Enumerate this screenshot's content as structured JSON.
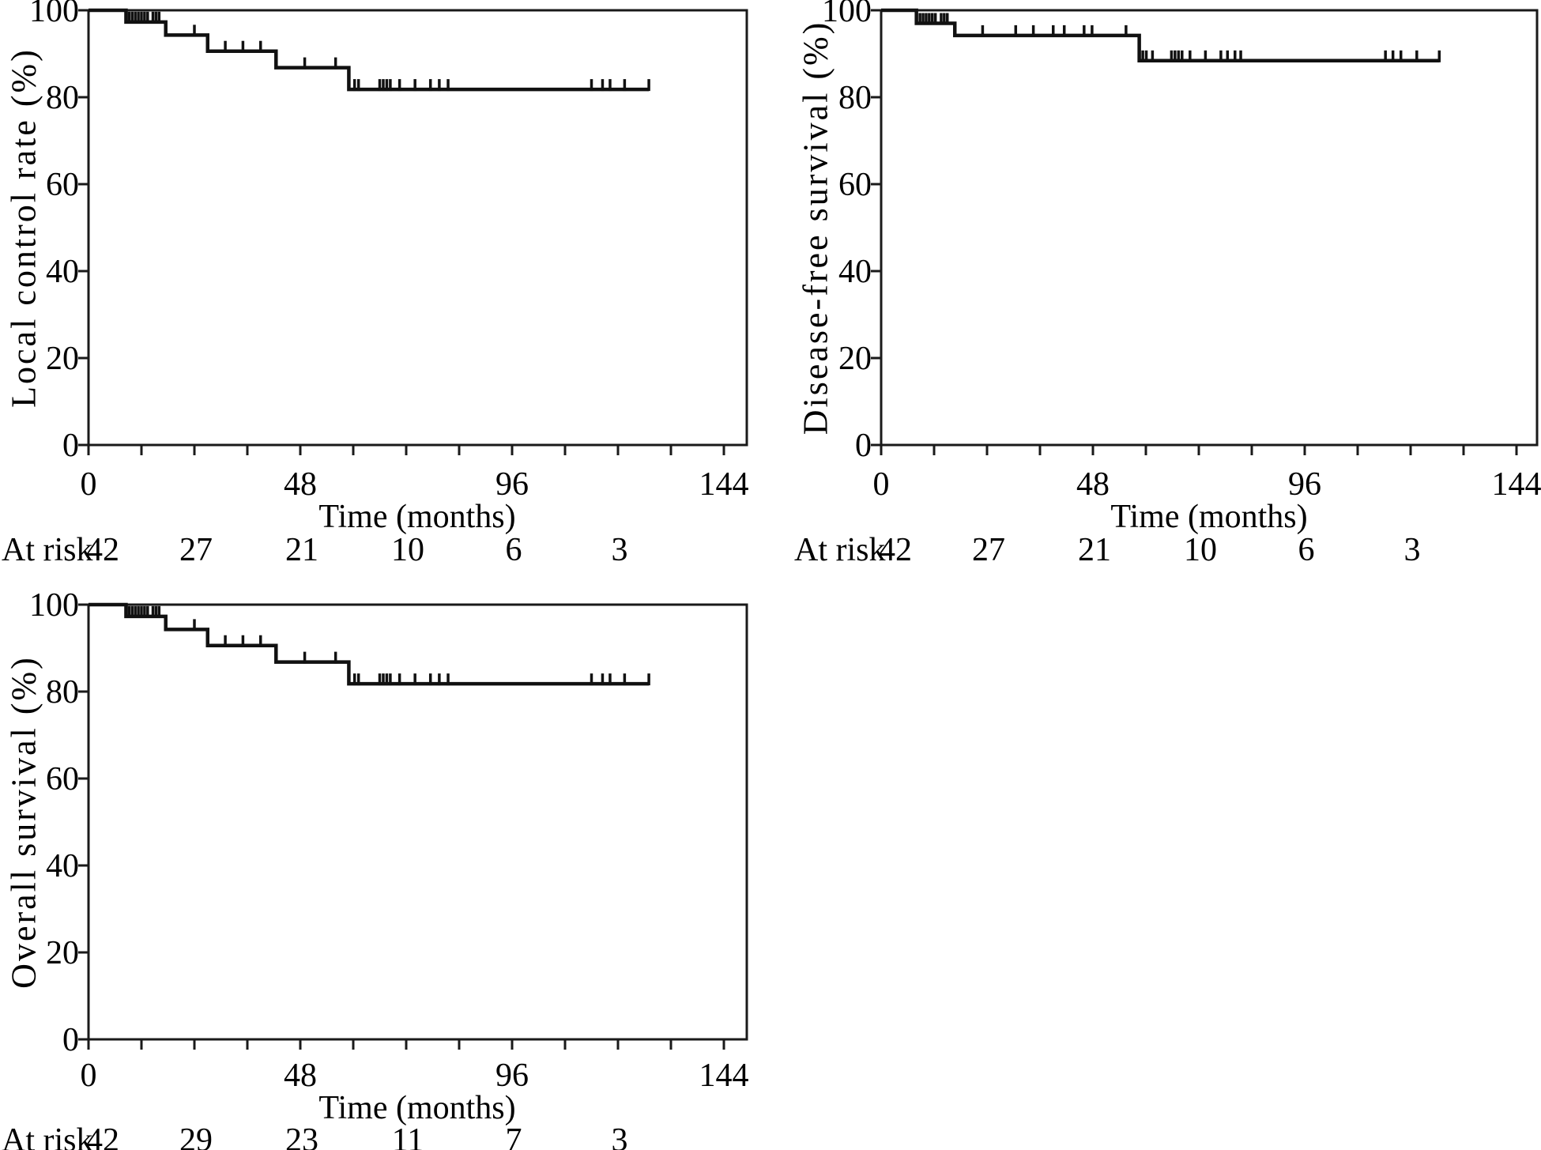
{
  "figure": {
    "description": "Three-panel Kaplan-Meier survival figure",
    "background_color": "#ffffff",
    "curve_color": "#111111",
    "axis_color": "#1a1a1a",
    "text_color": "#000000"
  },
  "chart_data": [
    {
      "id": "local-control",
      "type": "line",
      "style": "kaplan-meier-step",
      "title": "",
      "ylabel": "Local control rate (%)",
      "xlabel": "Time (months)",
      "xlim": [
        0,
        149
      ],
      "ylim": [
        0,
        100
      ],
      "grid": false,
      "legend": null,
      "y_ticks": [
        0,
        20,
        40,
        60,
        80,
        100
      ],
      "x_major_ticks": [
        0,
        48,
        96,
        144
      ],
      "x_minor_tick_step": 12,
      "start_level": 100,
      "steps": [
        [
          8.5,
          97.3
        ],
        [
          17.5,
          94.3
        ],
        [
          27,
          90.6
        ],
        [
          42.5,
          86.8
        ],
        [
          59,
          81.8
        ]
      ],
      "curve_end": 127,
      "censor_times": [
        9.2,
        9.9,
        10.6,
        11.3,
        12,
        12.7,
        13.4,
        14.6,
        15.3,
        16,
        24,
        31,
        35,
        39,
        49,
        56,
        60.3,
        61.2,
        66,
        66.8,
        67.6,
        68.4,
        70.5,
        74,
        77.5,
        79.5,
        81.5,
        114,
        116.5,
        118.2,
        121.5,
        127
      ],
      "at_risk": {
        "label": "At risk",
        "times": [
          0,
          24,
          48,
          72,
          96,
          120
        ],
        "values": [
          42,
          27,
          21,
          10,
          6,
          3
        ]
      }
    },
    {
      "id": "disease-free-survival",
      "type": "line",
      "style": "kaplan-meier-step",
      "title": "",
      "ylabel": "Disease-free survival (%)",
      "xlabel": "Time (months)",
      "xlim": [
        0,
        149
      ],
      "ylim": [
        0,
        100
      ],
      "grid": false,
      "legend": null,
      "y_ticks": [
        0,
        20,
        40,
        60,
        80,
        100
      ],
      "x_major_ticks": [
        0,
        48,
        96,
        144
      ],
      "x_minor_tick_step": 12,
      "start_level": 100,
      "steps": [
        [
          8,
          97.0
        ],
        [
          16.7,
          94.2
        ],
        [
          58.5,
          88.4
        ]
      ],
      "curve_end": 126.5,
      "censor_times": [
        8.8,
        9.5,
        10.2,
        10.9,
        11.6,
        12.3,
        13.6,
        14.3,
        15,
        23,
        30.5,
        34.5,
        39,
        41.5,
        46,
        47.8,
        55.5,
        59.3,
        60.1,
        61.5,
        65.8,
        66.6,
        67.4,
        68.2,
        70,
        73.5,
        77,
        78.5,
        80.2,
        81.5,
        114.3,
        116,
        117.8,
        121.4,
        126.5
      ],
      "at_risk": {
        "label": "At risk",
        "times": [
          0,
          24,
          48,
          72,
          96,
          120
        ],
        "values": [
          42,
          27,
          21,
          10,
          6,
          3
        ]
      }
    },
    {
      "id": "overall-survival",
      "type": "line",
      "style": "kaplan-meier-step",
      "title": "",
      "ylabel": "Overall survival (%)",
      "xlabel": "Time (months)",
      "xlim": [
        0,
        149
      ],
      "ylim": [
        0,
        100
      ],
      "grid": false,
      "legend": null,
      "y_ticks": [
        0,
        20,
        40,
        60,
        80,
        100
      ],
      "x_major_ticks": [
        0,
        48,
        96,
        144
      ],
      "x_minor_tick_step": 12,
      "start_level": 100,
      "steps": [
        [
          8.5,
          97.3
        ],
        [
          17.5,
          94.3
        ],
        [
          27,
          90.6
        ],
        [
          42.5,
          86.8
        ],
        [
          59,
          81.8
        ]
      ],
      "curve_end": 127,
      "censor_times": [
        9.2,
        9.9,
        10.6,
        11.3,
        12,
        12.7,
        13.4,
        14.6,
        15.3,
        16,
        24,
        31,
        35,
        39,
        49,
        56,
        60.3,
        61.2,
        66,
        66.8,
        67.6,
        68.4,
        70.5,
        74,
        77.5,
        79.5,
        81.5,
        114,
        116.5,
        118.2,
        121.5,
        127
      ],
      "at_risk": {
        "label": "At risk",
        "times": [
          0,
          24,
          48,
          72,
          96,
          120
        ],
        "values": [
          42,
          29,
          23,
          11,
          7,
          3
        ]
      }
    }
  ]
}
